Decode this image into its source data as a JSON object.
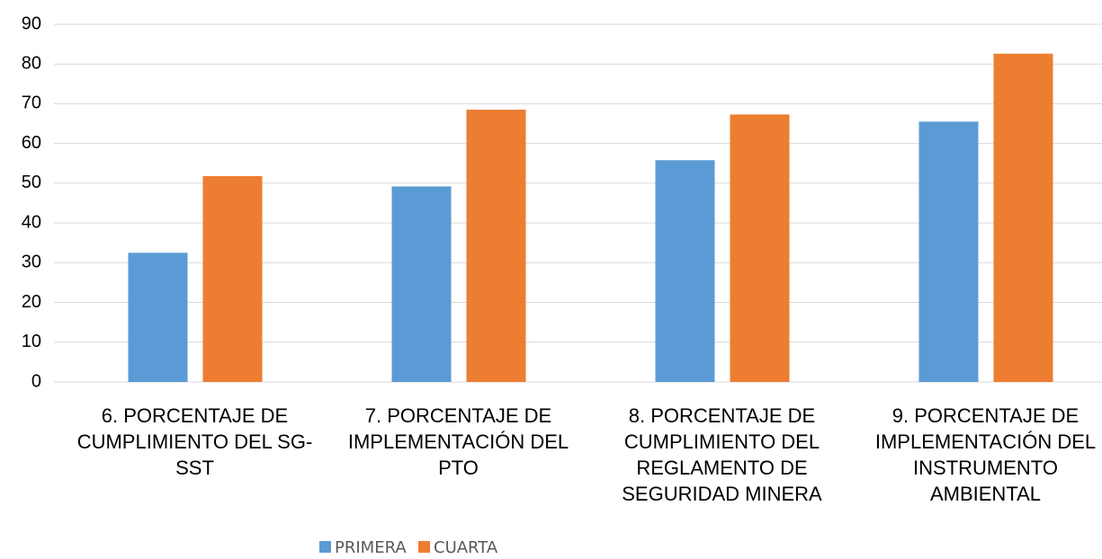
{
  "chart_data": {
    "type": "bar",
    "categories": [
      "6. PORCENTAJE DE CUMPLIMIENTO DEL SG-SST",
      "7. PORCENTAJE DE IMPLEMENTACIÓN DEL PTO",
      "8. PORCENTAJE DE CUMPLIMIENTO DEL REGLAMENTO DE SEGURIDAD MINERA",
      "9. PORCENTAJE DE IMPLEMENTACIÓN DEL INSTRUMENTO AMBIENTAL"
    ],
    "series": [
      {
        "name": "PRIMERA",
        "color": "#5b9bd5",
        "values": [
          32.5,
          49.2,
          55.8,
          65.5
        ]
      },
      {
        "name": "CUARTA",
        "color": "#ed7d31",
        "values": [
          51.8,
          68.5,
          67.3,
          82.6
        ]
      }
    ],
    "ylim": [
      0,
      90
    ],
    "yticks": [
      0,
      10,
      20,
      30,
      40,
      50,
      60,
      70,
      80,
      90
    ],
    "grid": true,
    "legend": "bottom"
  }
}
